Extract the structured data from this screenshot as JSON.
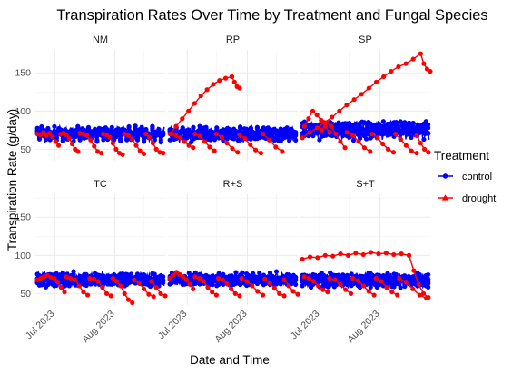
{
  "chart_data": {
    "type": "line",
    "title": "Transpiration Rates Over Time by Treatment and Fungal Species",
    "xlabel": "Date and Time",
    "ylabel": "Transpiration Rate (g/day)",
    "x_range": [
      "2023-06-21",
      "2023-08-27"
    ],
    "x_ticks": [
      {
        "date": "2023-07-01",
        "label": "Jul 2023"
      },
      {
        "date": "2023-08-01",
        "label": "Aug 2023"
      }
    ],
    "ylim": [
      35,
      180
    ],
    "y_ticks": [
      50,
      100,
      150
    ],
    "grid": true,
    "legend": {
      "title": "Treatment",
      "placement": "right",
      "entries": [
        {
          "label": "control",
          "color": "#0000ff",
          "marker": "circle"
        },
        {
          "label": "drought",
          "color": "#ff0000",
          "marker": "triangle"
        }
      ]
    },
    "panels": [
      {
        "name": "NM",
        "control_band": {
          "center": 70,
          "amplitude": 8,
          "min": 55,
          "max": 87
        },
        "drought_series": [
          {
            "start": "2023-06-22",
            "end": "2023-07-03",
            "values": [
              70,
              69,
              72,
              68,
              71,
              66,
              60,
              55
            ]
          },
          {
            "start": "2023-07-04",
            "end": "2023-07-13",
            "values": [
              70,
              71,
              69,
              64,
              57,
              50,
              47
            ]
          },
          {
            "start": "2023-07-14",
            "end": "2023-07-25",
            "values": [
              71,
              70,
              68,
              62,
              54,
              47,
              45
            ]
          },
          {
            "start": "2023-07-26",
            "end": "2023-08-05",
            "values": [
              70,
              69,
              66,
              58,
              50,
              45,
              43
            ]
          },
          {
            "start": "2023-08-06",
            "end": "2023-08-16",
            "values": [
              70,
              68,
              63,
              55,
              48,
              44
            ]
          },
          {
            "start": "2023-08-17",
            "end": "2023-08-26",
            "values": [
              70,
              66,
              58,
              50,
              46,
              45
            ]
          }
        ]
      },
      {
        "name": "RP",
        "control_band": {
          "center": 70,
          "amplitude": 7,
          "min": 55,
          "max": 85
        },
        "drought_series": [
          {
            "start": "2023-06-22",
            "end": "2023-07-24",
            "values": [
              70,
              80,
              90,
              100,
              110,
              120,
              128,
              135,
              140,
              143,
              145
            ]
          },
          {
            "start": "2023-07-24",
            "end": "2023-07-28",
            "values": [
              145,
              138,
              132,
              130
            ]
          },
          {
            "start": "2023-06-23",
            "end": "2023-07-04",
            "values": [
              70,
              68,
              65,
              60,
              55,
              52
            ]
          },
          {
            "start": "2023-07-05",
            "end": "2023-07-15",
            "values": [
              70,
              67,
              60,
              53,
              48
            ]
          },
          {
            "start": "2023-07-16",
            "end": "2023-07-27",
            "values": [
              70,
              66,
              58,
              51,
              46
            ]
          },
          {
            "start": "2023-07-28",
            "end": "2023-08-08",
            "values": [
              69,
              64,
              56,
              49,
              45
            ]
          },
          {
            "start": "2023-08-09",
            "end": "2023-08-19",
            "values": [
              70,
              62,
              53,
              47
            ]
          }
        ]
      },
      {
        "name": "SP",
        "control_band": {
          "center": 75,
          "amplitude": 9,
          "min": 55,
          "max": 112
        },
        "drought_series": [
          {
            "start": "2023-06-22",
            "end": "2023-08-22",
            "values": [
              65,
              72,
              78,
              85,
              92,
              100,
              108,
              115,
              122,
              130,
              138,
              145,
              152,
              158,
              162,
              168,
              175
            ]
          },
          {
            "start": "2023-08-22",
            "end": "2023-08-27",
            "values": [
              175,
              162,
              155,
              152
            ]
          },
          {
            "start": "2023-06-23",
            "end": "2023-07-06",
            "values": [
              80,
              90,
              100,
              95,
              88,
              80,
              72
            ]
          },
          {
            "start": "2023-07-02",
            "end": "2023-07-14",
            "values": [
              75,
              85,
              80,
              70,
              60,
              52
            ]
          },
          {
            "start": "2023-07-15",
            "end": "2023-07-27",
            "values": [
              72,
              68,
              60,
              52,
              47
            ]
          },
          {
            "start": "2023-07-28",
            "end": "2023-08-08",
            "values": [
              70,
              65,
              57,
              50,
              46
            ]
          },
          {
            "start": "2023-08-09",
            "end": "2023-08-20",
            "values": [
              70,
              63,
              55,
              48,
              45
            ]
          },
          {
            "start": "2023-08-20",
            "end": "2023-08-26",
            "values": [
              68,
              58,
              50,
              46
            ]
          }
        ]
      },
      {
        "name": "TC",
        "control_band": {
          "center": 68,
          "amplitude": 7,
          "min": 45,
          "max": 80
        },
        "drought_series": [
          {
            "start": "2023-06-22",
            "end": "2023-07-06",
            "values": [
              68,
              70,
              72,
              74,
              71,
              70,
              65,
              58,
              52
            ]
          },
          {
            "start": "2023-07-07",
            "end": "2023-07-18",
            "values": [
              72,
              70,
              68,
              60,
              52,
              48
            ]
          },
          {
            "start": "2023-07-19",
            "end": "2023-07-30",
            "values": [
              70,
              69,
              66,
              58,
              50,
              47
            ]
          },
          {
            "start": "2023-07-31",
            "end": "2023-08-10",
            "values": [
              70,
              66,
              60,
              50,
              42,
              38
            ]
          },
          {
            "start": "2023-08-11",
            "end": "2023-08-21",
            "values": [
              68,
              64,
              56,
              49,
              46
            ]
          },
          {
            "start": "2023-08-20",
            "end": "2023-08-27",
            "values": [
              66,
              58,
              50,
              47
            ]
          }
        ]
      },
      {
        "name": "R+S",
        "control_band": {
          "center": 69,
          "amplitude": 6,
          "min": 52,
          "max": 80
        },
        "drought_series": [
          {
            "start": "2023-06-22",
            "end": "2023-07-04",
            "values": [
              70,
              74,
              78,
              75,
              72,
              68,
              62,
              56
            ]
          },
          {
            "start": "2023-07-05",
            "end": "2023-07-16",
            "values": [
              72,
              70,
              66,
              58,
              52,
              48
            ]
          },
          {
            "start": "2023-07-17",
            "end": "2023-07-28",
            "values": [
              70,
              68,
              63,
              56,
              50,
              47
            ]
          },
          {
            "start": "2023-07-29",
            "end": "2023-08-09",
            "values": [
              70,
              66,
              60,
              53,
              48
            ]
          },
          {
            "start": "2023-08-10",
            "end": "2023-08-20",
            "values": [
              69,
              64,
              57,
              50,
              47
            ]
          },
          {
            "start": "2023-08-20",
            "end": "2023-08-27",
            "values": [
              68,
              60,
              53,
              49
            ]
          }
        ]
      },
      {
        "name": "S+T",
        "control_band": {
          "center": 68,
          "amplitude": 7,
          "min": 50,
          "max": 82
        },
        "drought_series": [
          {
            "start": "2023-06-22",
            "end": "2023-08-16",
            "values": [
              95,
              98,
              97,
              100,
              99,
              102,
              100,
              103,
              101,
              104,
              102,
              103,
              101,
              102,
              100
            ]
          },
          {
            "start": "2023-08-16",
            "end": "2023-08-26",
            "values": [
              100,
              80,
              62,
              50,
              45
            ]
          },
          {
            "start": "2023-06-23",
            "end": "2023-07-05",
            "values": [
              72,
              70,
              66,
              60,
              55,
              52
            ]
          },
          {
            "start": "2023-07-06",
            "end": "2023-07-17",
            "values": [
              70,
              68,
              62,
              55,
              50
            ]
          },
          {
            "start": "2023-07-18",
            "end": "2023-07-29",
            "values": [
              70,
              67,
              60,
              53,
              48
            ]
          },
          {
            "start": "2023-07-30",
            "end": "2023-08-10",
            "values": [
              70,
              66,
              58,
              52,
              48
            ]
          },
          {
            "start": "2023-08-11",
            "end": "2023-08-25",
            "values": [
              70,
              65,
              56,
              48,
              44
            ]
          }
        ]
      }
    ]
  }
}
